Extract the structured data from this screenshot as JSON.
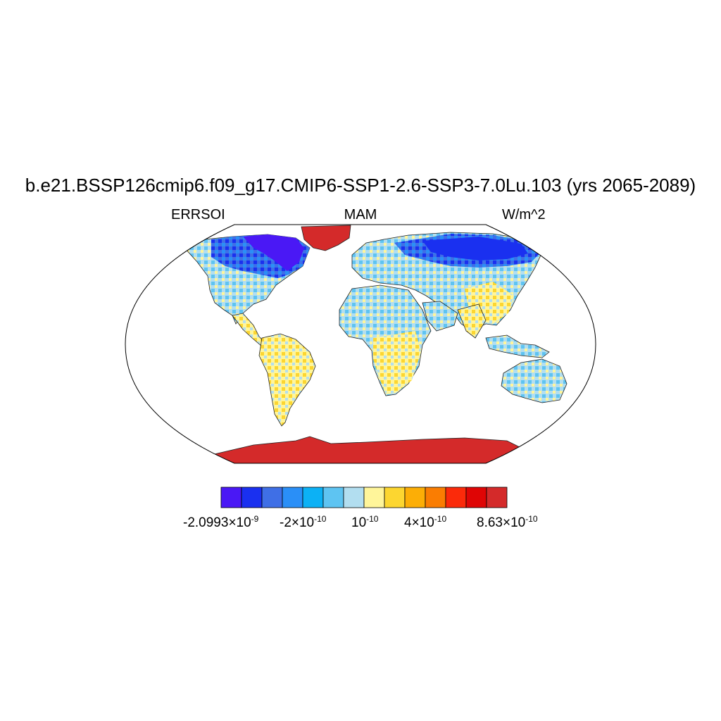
{
  "title": "b.e21.BSSP126cmip6.f09_g17.CMIP6-SSP1-2.6-SSP3-7.0Lu.103 (yrs 2065-2089)",
  "left_label": "ERRSOI",
  "center_label": "MAM",
  "right_label": "W/m^2",
  "colorbar": {
    "colors": [
      "#4a18f5",
      "#1a30f0",
      "#3f6fe6",
      "#2a8ff7",
      "#0cb1f5",
      "#5ec4f2",
      "#b2def0",
      "#fff59a",
      "#fcd630",
      "#fcae06",
      "#fa7d02",
      "#fb2a0a",
      "#df0505",
      "#d42a2a"
    ],
    "labels": [
      {
        "base": "-2.0993×10",
        "exp": "-9"
      },
      {
        "base": "-2×10",
        "exp": "-10"
      },
      {
        "base": "10",
        "exp": "-10"
      },
      {
        "base": "4×10",
        "exp": "-10"
      },
      {
        "base": "8.63×10",
        "exp": "-10"
      }
    ]
  }
}
